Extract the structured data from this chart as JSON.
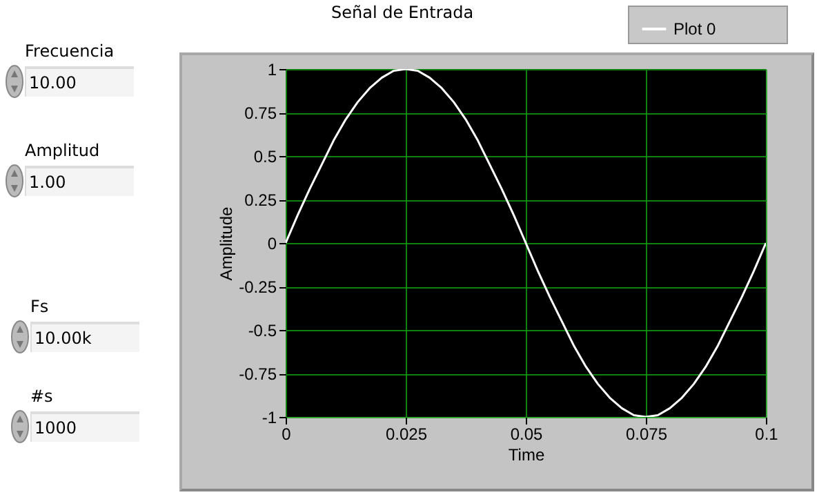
{
  "chart_data": {
    "type": "line",
    "title": "Señal de Entrada",
    "xlabel": "Time",
    "ylabel": "Amplitude",
    "x": [
      0,
      0.0025,
      0.005,
      0.0075,
      0.01,
      0.0125,
      0.015,
      0.0175,
      0.02,
      0.0225,
      0.025,
      0.0275,
      0.03,
      0.0325,
      0.035,
      0.0375,
      0.04,
      0.0425,
      0.045,
      0.0475,
      0.05,
      0.0525,
      0.055,
      0.0575,
      0.06,
      0.0625,
      0.065,
      0.0675,
      0.07,
      0.0725,
      0.075,
      0.0775,
      0.08,
      0.0825,
      0.085,
      0.0875,
      0.09,
      0.0925,
      0.095,
      0.0975,
      0.1
    ],
    "series": [
      {
        "name": "Plot 0",
        "color": "#ffffff",
        "values": [
          0,
          0.16,
          0.31,
          0.45,
          0.59,
          0.71,
          0.81,
          0.89,
          0.95,
          0.99,
          1,
          0.99,
          0.95,
          0.89,
          0.81,
          0.71,
          0.59,
          0.45,
          0.31,
          0.16,
          0,
          -0.16,
          -0.31,
          -0.45,
          -0.59,
          -0.71,
          -0.81,
          -0.89,
          -0.95,
          -0.99,
          -1,
          -0.99,
          -0.95,
          -0.89,
          -0.81,
          -0.71,
          -0.59,
          -0.45,
          -0.31,
          -0.16,
          0
        ]
      }
    ],
    "xlim": [
      0,
      0.1
    ],
    "xticks": [
      0,
      0.025,
      0.05,
      0.075,
      0.1
    ],
    "ylim": [
      -1,
      1
    ],
    "yticks": [
      -1,
      -0.75,
      -0.5,
      -0.25,
      0,
      0.25,
      0.5,
      0.75,
      1
    ],
    "grid": true,
    "legend": "top right",
    "annotations": [
      "Frecuencia",
      "10.00",
      "Amplitud",
      "1.00",
      "Fs",
      "10.00k",
      "#s",
      "1000"
    ]
  }
}
